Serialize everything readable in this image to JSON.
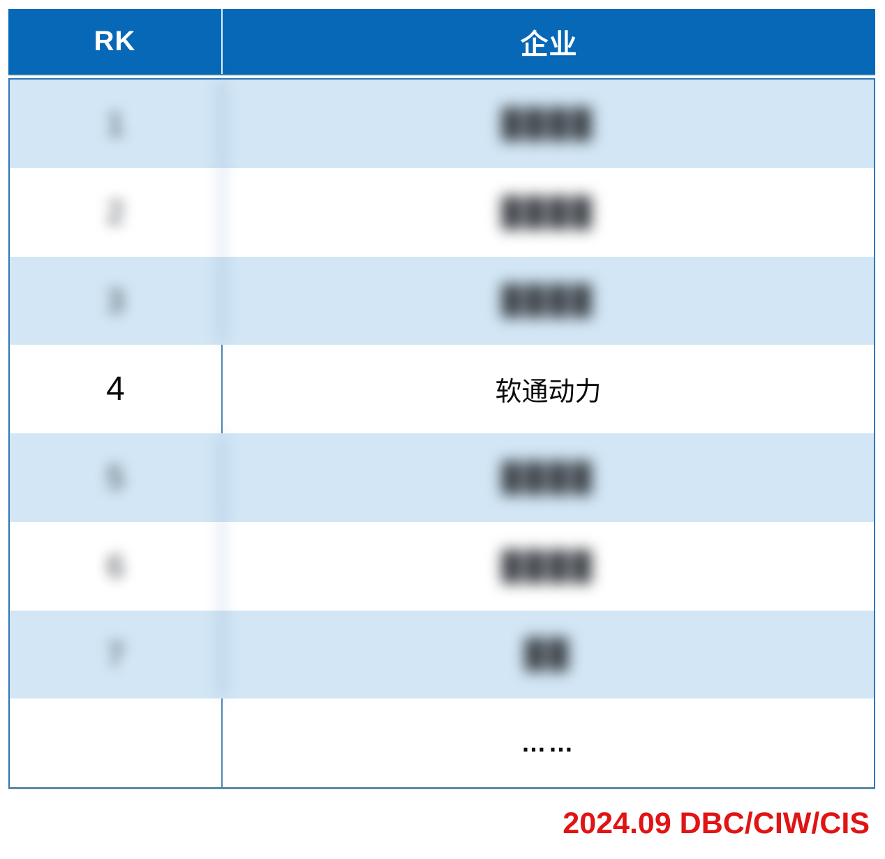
{
  "colors": {
    "header_bg": "#0668b6",
    "row_alt_bg": "#d2e6f5",
    "body_border": "#2e75b6",
    "bottom_border": "#5b89a6",
    "accent_red": "#e01414"
  },
  "table": {
    "header": {
      "rank_label": "RK",
      "company_label": "企业"
    },
    "rows": [
      {
        "rank": "1",
        "company": "████",
        "style": "blurred"
      },
      {
        "rank": "2",
        "company": "████",
        "style": "blurred"
      },
      {
        "rank": "3",
        "company": "████",
        "style": "blurred"
      },
      {
        "rank": "4",
        "company": "软通动力",
        "style": "clear"
      },
      {
        "rank": "5",
        "company": "████",
        "style": "blurred"
      },
      {
        "rank": "6",
        "company": "████",
        "style": "blurred"
      },
      {
        "rank": "7",
        "company": "██",
        "style": "blurred"
      },
      {
        "rank": "",
        "company": "……",
        "style": "ellipsis"
      }
    ]
  },
  "footer": {
    "source": "2024.09 DBC/CIW/CIS"
  }
}
